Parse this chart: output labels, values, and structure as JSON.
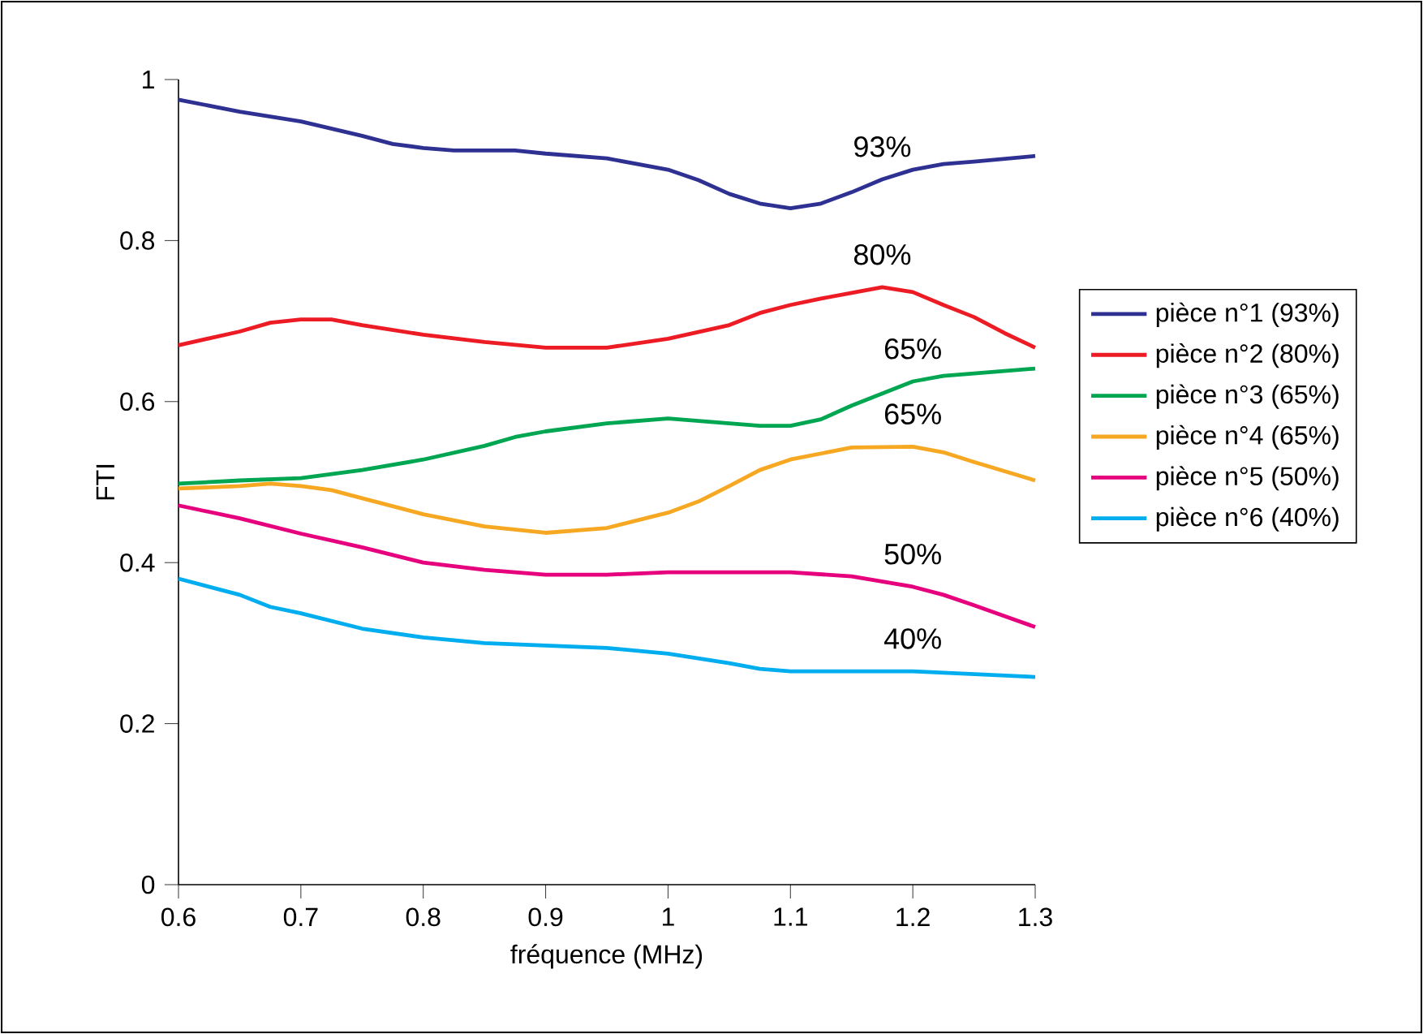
{
  "chart_data": {
    "type": "line",
    "xlabel": "fréquence (MHz)",
    "ylabel": "FTI",
    "xlim": [
      0.6,
      1.3
    ],
    "ylim": [
      0,
      1
    ],
    "xticks": [
      0.6,
      0.7,
      0.8,
      0.9,
      1,
      1.1,
      1.2,
      1.3
    ],
    "yticks": [
      0,
      0.2,
      0.4,
      0.6,
      0.8,
      1
    ],
    "grid": false,
    "legend": "right",
    "marker": "none",
    "line_style": "solid",
    "series": [
      {
        "name": "pièce n°1 (93%)",
        "color": "#2e3192",
        "x": [
          0.6,
          0.65,
          0.7,
          0.75,
          0.775,
          0.8,
          0.825,
          0.85,
          0.875,
          0.9,
          0.95,
          1.0,
          1.025,
          1.05,
          1.075,
          1.1,
          1.125,
          1.15,
          1.175,
          1.2,
          1.225,
          1.25,
          1.3
        ],
        "values": [
          0.975,
          0.96,
          0.948,
          0.93,
          0.92,
          0.915,
          0.912,
          0.912,
          0.912,
          0.908,
          0.902,
          0.888,
          0.875,
          0.858,
          0.846,
          0.84,
          0.846,
          0.86,
          0.876,
          0.888,
          0.895,
          0.898,
          0.905
        ]
      },
      {
        "name": "pièce n°2 (80%)",
        "color": "#ed1c24",
        "x": [
          0.6,
          0.65,
          0.675,
          0.7,
          0.725,
          0.75,
          0.8,
          0.85,
          0.9,
          0.95,
          1.0,
          1.05,
          1.075,
          1.1,
          1.125,
          1.15,
          1.175,
          1.2,
          1.225,
          1.25,
          1.275,
          1.3
        ],
        "values": [
          0.67,
          0.687,
          0.698,
          0.702,
          0.702,
          0.695,
          0.683,
          0.674,
          0.667,
          0.667,
          0.678,
          0.695,
          0.71,
          0.72,
          0.728,
          0.735,
          0.742,
          0.736,
          0.72,
          0.705,
          0.685,
          0.667
        ]
      },
      {
        "name": "pièce n°3 (65%)",
        "color": "#00a651",
        "x": [
          0.6,
          0.65,
          0.7,
          0.75,
          0.8,
          0.85,
          0.875,
          0.9,
          0.95,
          1.0,
          1.025,
          1.075,
          1.1,
          1.125,
          1.15,
          1.2,
          1.225,
          1.25,
          1.3
        ],
        "values": [
          0.498,
          0.502,
          0.505,
          0.515,
          0.528,
          0.545,
          0.556,
          0.563,
          0.573,
          0.579,
          0.576,
          0.57,
          0.57,
          0.578,
          0.595,
          0.625,
          0.632,
          0.635,
          0.641
        ]
      },
      {
        "name": "pièce n°4 (65%)",
        "color": "#f7a823",
        "x": [
          0.6,
          0.65,
          0.675,
          0.7,
          0.725,
          0.75,
          0.8,
          0.85,
          0.9,
          0.95,
          1.0,
          1.025,
          1.05,
          1.075,
          1.1,
          1.15,
          1.2,
          1.225,
          1.25,
          1.3
        ],
        "values": [
          0.492,
          0.495,
          0.498,
          0.495,
          0.49,
          0.48,
          0.46,
          0.445,
          0.437,
          0.443,
          0.462,
          0.476,
          0.495,
          0.515,
          0.528,
          0.543,
          0.544,
          0.537,
          0.525,
          0.502
        ]
      },
      {
        "name": "pièce n°5 (50%)",
        "color": "#e6007e",
        "x": [
          0.6,
          0.65,
          0.7,
          0.75,
          0.8,
          0.85,
          0.9,
          0.95,
          1.0,
          1.05,
          1.1,
          1.15,
          1.2,
          1.225,
          1.25,
          1.3
        ],
        "values": [
          0.471,
          0.455,
          0.436,
          0.419,
          0.4,
          0.391,
          0.385,
          0.385,
          0.388,
          0.388,
          0.388,
          0.383,
          0.37,
          0.36,
          0.347,
          0.32
        ]
      },
      {
        "name": "pièce n°6 (40%)",
        "color": "#00aeef",
        "x": [
          0.6,
          0.65,
          0.675,
          0.7,
          0.75,
          0.8,
          0.85,
          0.9,
          0.95,
          1.0,
          1.05,
          1.075,
          1.1,
          1.2,
          1.3
        ],
        "values": [
          0.38,
          0.36,
          0.345,
          0.337,
          0.318,
          0.307,
          0.3,
          0.297,
          0.294,
          0.287,
          0.275,
          0.268,
          0.265,
          0.265,
          0.258
        ]
      }
    ],
    "annotations": [
      "93%",
      "80%",
      "65%",
      "65%",
      "50%",
      "40%"
    ]
  }
}
